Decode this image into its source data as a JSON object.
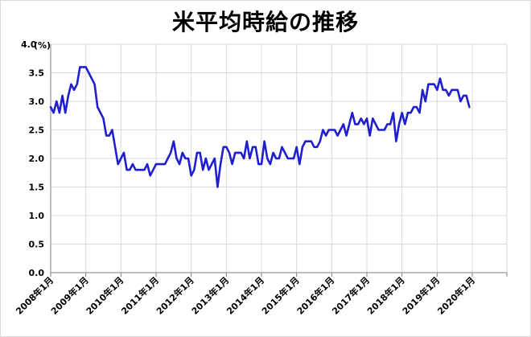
{
  "chart_data": {
    "type": "line",
    "title": "米平均時給の推移",
    "unit_label": "(%)",
    "ylim": [
      0,
      4
    ],
    "yticks": [
      "4.0",
      "3.5",
      "3.0",
      "2.5",
      "2.0",
      "1.5",
      "1.0",
      "0.5",
      "0.0"
    ],
    "xticks": [
      "2008年1月",
      "2009年1月",
      "2010年1月",
      "2011年1月",
      "2012年1月",
      "2013年1月",
      "2014年1月",
      "2015年1月",
      "2016年1月",
      "2017年1月",
      "2018年1月",
      "2019年1月",
      "2020年1月"
    ],
    "grid": true,
    "series_color": "#1f1fd0",
    "series": [
      {
        "x_start": "2008-01",
        "frequency": "monthly",
        "values": [
          2.9,
          2.8,
          3.0,
          2.8,
          3.1,
          2.8,
          3.1,
          3.3,
          3.2,
          3.3,
          3.6,
          3.6,
          3.6,
          3.5,
          3.4,
          3.3,
          2.9,
          2.8,
          2.7,
          2.4,
          2.4,
          2.5,
          2.2,
          1.9,
          2.0,
          2.1,
          1.8,
          1.8,
          1.9,
          1.8,
          1.8,
          1.8,
          1.8,
          1.9,
          1.7,
          1.8,
          1.9,
          1.9,
          1.9,
          1.9,
          2.0,
          2.1,
          2.3,
          2.0,
          1.9,
          2.1,
          2.0,
          2.0,
          1.7,
          1.8,
          2.1,
          2.1,
          1.8,
          2.0,
          1.8,
          1.9,
          2.0,
          1.5,
          1.9,
          2.2,
          2.2,
          2.1,
          1.9,
          2.1,
          2.1,
          2.1,
          2.0,
          2.3,
          2.0,
          2.2,
          2.2,
          1.9,
          1.9,
          2.3,
          2.0,
          1.9,
          2.1,
          2.0,
          2.0,
          2.2,
          2.1,
          2.0,
          2.0,
          2.0,
          2.2,
          1.9,
          2.2,
          2.3,
          2.3,
          2.3,
          2.2,
          2.2,
          2.3,
          2.5,
          2.4,
          2.5,
          2.5,
          2.5,
          2.4,
          2.5,
          2.6,
          2.4,
          2.6,
          2.8,
          2.6,
          2.6,
          2.7,
          2.6,
          2.7,
          2.4,
          2.7,
          2.6,
          2.5,
          2.5,
          2.5,
          2.6,
          2.6,
          2.8,
          2.3,
          2.6,
          2.8,
          2.6,
          2.8,
          2.8,
          2.9,
          2.9,
          2.8,
          3.2,
          3.0,
          3.3,
          3.3,
          3.3,
          3.2,
          3.4,
          3.2,
          3.2,
          3.1,
          3.2,
          3.2,
          3.2,
          3.0,
          3.1,
          3.1,
          2.9
        ]
      }
    ]
  }
}
